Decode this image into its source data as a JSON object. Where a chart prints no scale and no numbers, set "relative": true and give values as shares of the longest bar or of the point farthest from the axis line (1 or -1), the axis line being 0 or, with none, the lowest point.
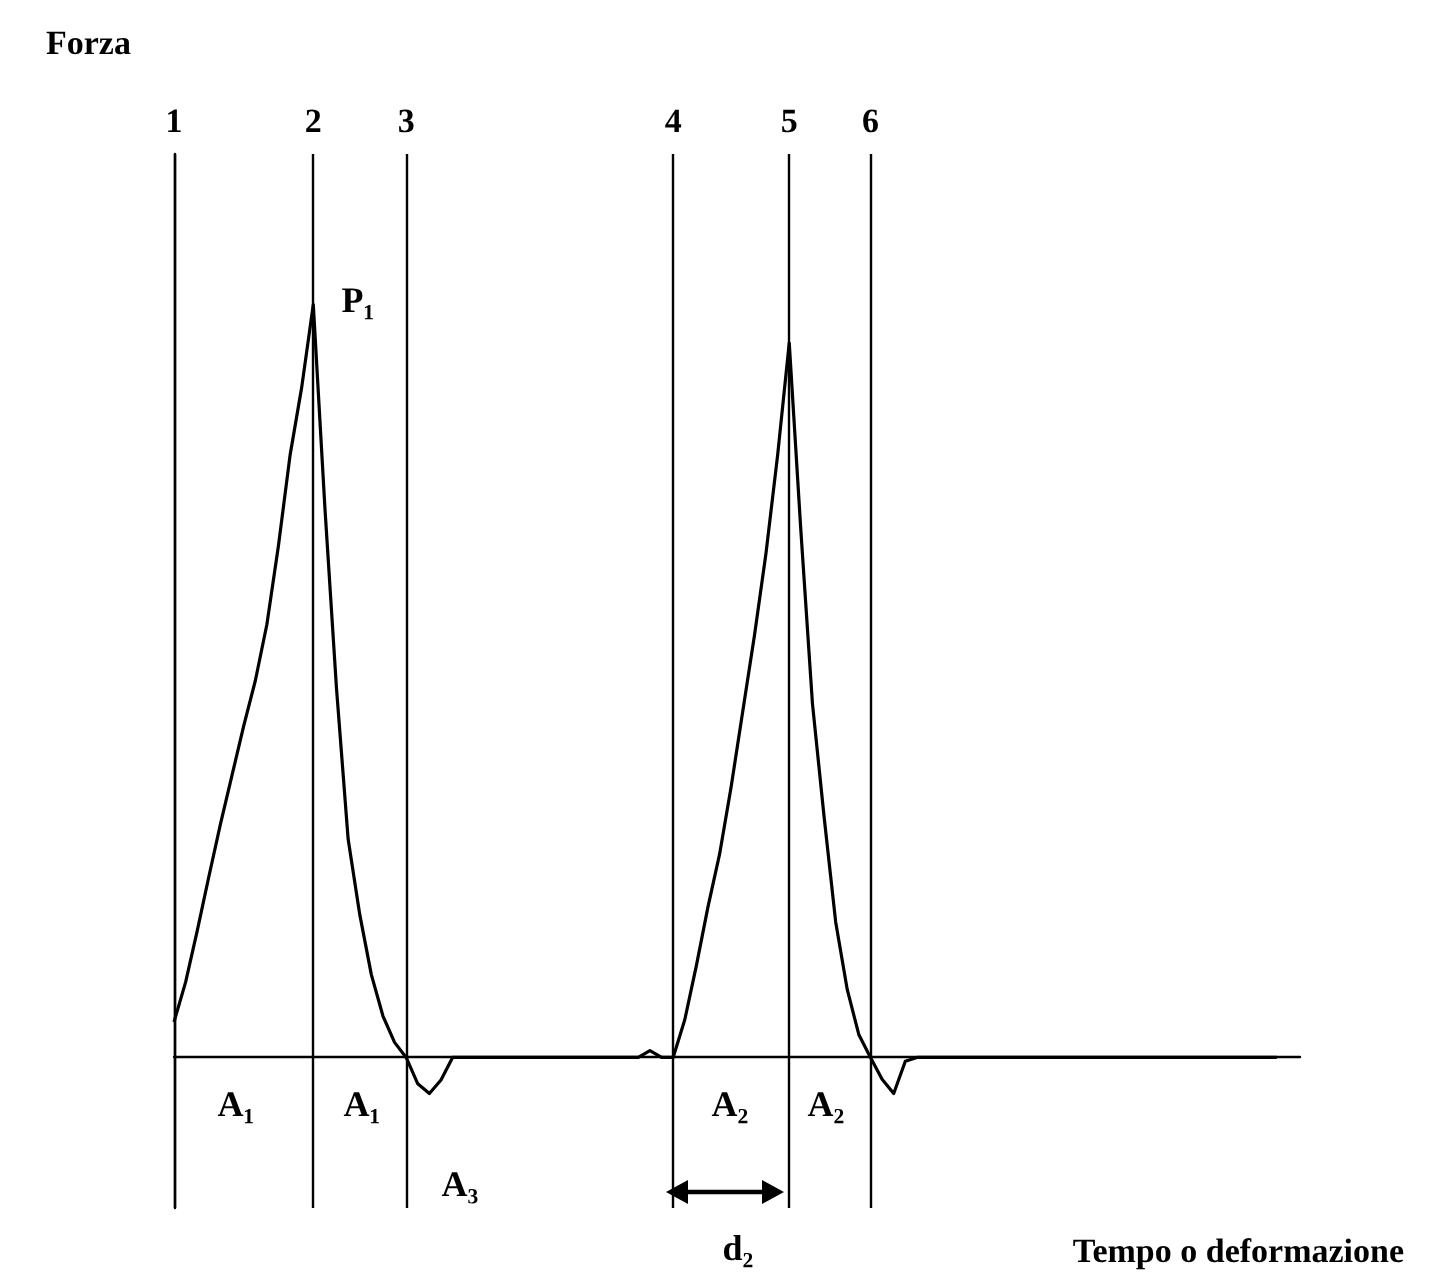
{
  "chart_data": {
    "type": "line",
    "relative": true,
    "color": "#000000",
    "ylabel": "Forza",
    "xlabel": "Tempo o deformazione",
    "grid": "x",
    "marker": "none",
    "line_style": "solid",
    "categories": [
      "1",
      null,
      null,
      null,
      null,
      null,
      null,
      null,
      null,
      null,
      null,
      null,
      "2",
      null,
      null,
      null,
      null,
      null,
      null,
      null,
      "3",
      null,
      null,
      null,
      null,
      null,
      null,
      null,
      null,
      null,
      null,
      null,
      null,
      null,
      null,
      null,
      null,
      null,
      null,
      null,
      null,
      null,
      null,
      "4",
      null,
      null,
      null,
      null,
      null,
      null,
      null,
      null,
      null,
      "5",
      null,
      null,
      null,
      null,
      null,
      null,
      "6",
      null,
      null,
      null,
      null,
      null,
      null,
      null,
      null,
      null,
      null,
      null,
      null,
      null,
      null,
      null,
      null,
      null,
      null,
      null,
      null,
      null,
      null,
      null,
      null,
      null,
      null,
      null,
      null,
      null,
      null,
      null,
      null,
      null,
      null,
      null,
      null,
      null
    ],
    "values": [
      0.047,
      0.1,
      0.168,
      0.24,
      0.31,
      0.375,
      0.44,
      0.5,
      0.575,
      0.68,
      0.8,
      0.89,
      1.0,
      0.73,
      0.49,
      0.29,
      0.19,
      0.11,
      0.055,
      0.02,
      0.0,
      -0.035,
      -0.048,
      -0.03,
      0.0,
      0.0,
      0.0,
      0.0,
      0.0,
      0.0,
      0.0,
      0.0,
      0.0,
      0.0,
      0.0,
      0.0,
      0.0,
      0.0,
      0.0,
      0.0,
      0.0,
      0.009,
      0.0,
      0.0,
      0.05,
      0.122,
      0.2,
      0.27,
      0.36,
      0.46,
      0.56,
      0.67,
      0.8,
      0.949,
      0.7,
      0.47,
      0.32,
      0.18,
      0.09,
      0.03,
      0.0,
      -0.029,
      -0.048,
      -0.005,
      0.0,
      0.0,
      0.0,
      0.0,
      0.0,
      0.0,
      0.0,
      0.0,
      0.0,
      0.0,
      0.0,
      0.0,
      0.0,
      0.0,
      0.0,
      0.0,
      0.0,
      0.0,
      0.0,
      0.0,
      0.0,
      0.0,
      0.0,
      0.0,
      0.0,
      0.0,
      0.0,
      0.0,
      0.0,
      0.0,
      0.0,
      0.0,
      null,
      null
    ],
    "annotations": [
      "P₁",
      "A₁",
      "A₁",
      "A₃",
      "A₂",
      "A₂",
      "d₂"
    ]
  }
}
